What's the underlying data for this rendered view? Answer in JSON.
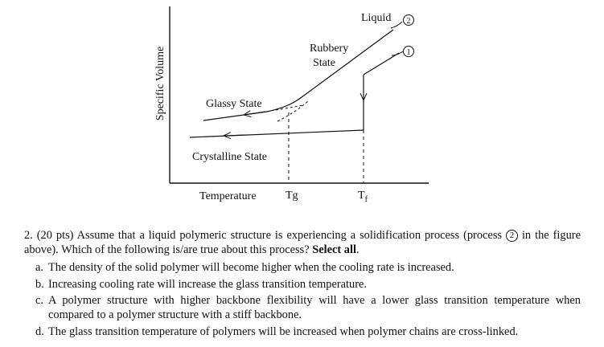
{
  "figure": {
    "ylabel": "Specific Volume",
    "xlabel": "Temperature",
    "tg_label": "Tg",
    "tf_label": "T",
    "tf_sub": "f",
    "labels": {
      "liquid": "Liquid",
      "rubbery_1": "Rubbery",
      "rubbery_2": "State",
      "glassy": "Glassy State",
      "crystalline": "Crystalline State"
    },
    "process_markers": [
      "2",
      "1"
    ]
  },
  "question": {
    "prefix": "2. (20 pts) Assume that a liquid polymeric structure is experiencing a solidification process (process",
    "process_number": "2",
    "middle": "in the figure above). Which of the following is/are true about this process?",
    "bold": "Select all",
    "end": ".",
    "options": [
      {
        "letter": "a.",
        "text": "The density of the solid polymer will become higher when the cooling rate is increased."
      },
      {
        "letter": "b.",
        "text": "Increasing cooling rate will increase the glass transition temperature."
      },
      {
        "letter": "c.",
        "text": "A polymer structure with higher backbone flexibility will have a lower glass transition temperature when compared to a polymer structure with a stiff backbone."
      },
      {
        "letter": "d.",
        "text": "The glass transition temperature of polymers will be increased when polymer chains are cross-linked."
      }
    ]
  }
}
